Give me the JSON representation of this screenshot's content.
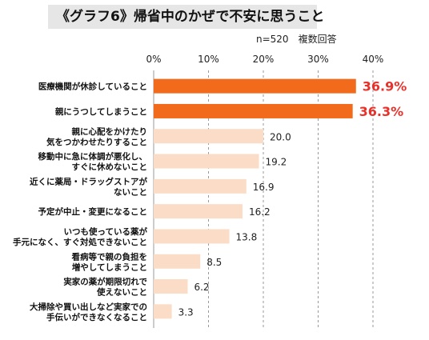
{
  "title": "《グラフ6》帰省中のかぜで不安に思うこと",
  "note": "n=520　複数回答",
  "colors": {
    "highlight": "#f26b1d",
    "bar": "#fbdcc7",
    "highlight_value": "#e8312a",
    "grid": "#999999"
  },
  "chart_data": {
    "type": "bar",
    "orientation": "horizontal",
    "unit": "%",
    "xlim": [
      0,
      40
    ],
    "ticks": [
      "0%",
      "10%",
      "20%",
      "30%",
      "40%"
    ],
    "grid": true,
    "categories": [
      [
        "医療機関が休診していること"
      ],
      [
        "親にうつしてしまうこと"
      ],
      [
        "親に心配をかけたり",
        "気をつかわせたりすること"
      ],
      [
        "移動中に急に体調が悪化し、",
        "すぐに休めないこと"
      ],
      [
        "近くに薬局・ドラッグストアが",
        "ないこと"
      ],
      [
        "予定が中止・変更になること"
      ],
      [
        "いつも使っている薬が",
        "手元になく、すぐ対処できないこと"
      ],
      [
        "看病等で親の負担を",
        "増やしてしまうこと"
      ],
      [
        "実家の薬が期限切れで",
        "使えないこと"
      ],
      [
        "大掃除や買い出しなど実家での",
        "手伝いができなくなること"
      ]
    ],
    "values": [
      36.9,
      36.3,
      20.0,
      19.2,
      16.9,
      16.2,
      13.8,
      8.5,
      6.2,
      3.3
    ],
    "value_labels": [
      "36.9%",
      "36.3%",
      "20.0",
      "19.2",
      "16.9",
      "16.2",
      "13.8",
      "8.5",
      "6.2",
      "3.3"
    ],
    "highlighted": [
      true,
      true,
      false,
      false,
      false,
      false,
      false,
      false,
      false,
      false
    ]
  }
}
